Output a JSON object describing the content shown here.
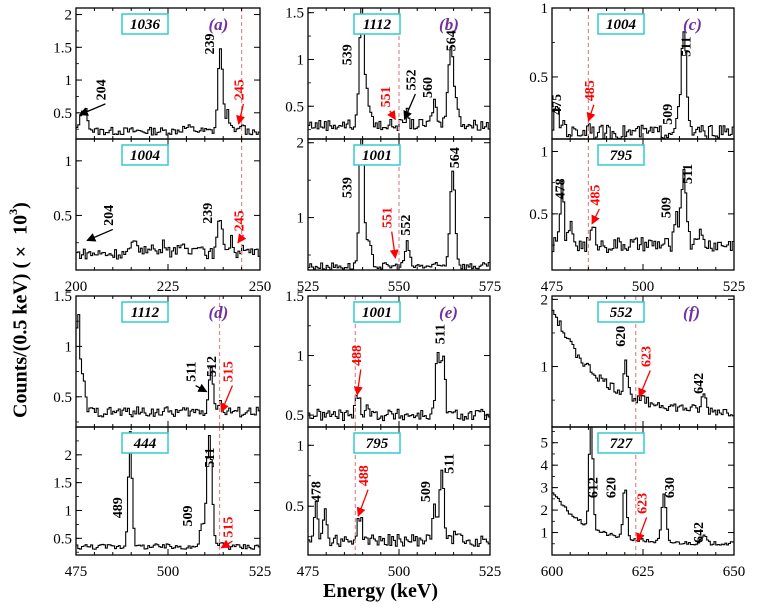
{
  "axis_label_y": "Counts/(0.5 keV) (× 10",
  "axis_label_y_sup": "3",
  "axis_label_y_end": ")",
  "axis_label_x": "Energy (keV)",
  "colors": {
    "line": "#000000",
    "gate_line": "#e08a8a",
    "new_label": "#ff0000",
    "box": "#33cccc",
    "panel_letter": "#7030a0"
  },
  "chart_data": [
    {
      "type": "line",
      "column": 0,
      "row": 0,
      "gate": "1036",
      "letter": "(a)",
      "xlim": [
        200,
        250
      ],
      "ylim": [
        0.1,
        2.1
      ],
      "yticks": [
        0.5,
        1,
        1.5,
        2
      ],
      "ytick_labels": [
        "0.5",
        "1",
        "1.5",
        "2"
      ],
      "dashed_x": 245,
      "annotations": [
        {
          "text": "204",
          "x": 208,
          "y": 0.85,
          "color": "black",
          "arrow_to": [
            201,
            0.47
          ]
        },
        {
          "text": "239",
          "x": 237.5,
          "y": 1.55,
          "color": "black"
        },
        {
          "text": "245",
          "x": 245.5,
          "y": 0.85,
          "color": "red",
          "arrow_to": [
            244.2,
            0.33
          ]
        }
      ],
      "peaks": [
        [
          202,
          0.35,
          0.9
        ],
        [
          239,
          1.3,
          0.6
        ],
        [
          241,
          0.3,
          0.5
        ],
        [
          245,
          0.12,
          0.4
        ],
        [
          230,
          0.05,
          1.5
        ]
      ],
      "baseline": 0.22,
      "noise": 0.06
    },
    {
      "type": "line",
      "column": 0,
      "row": 1,
      "gate": "1004",
      "letter": "",
      "xlim": [
        200,
        250
      ],
      "ylim": [
        0.0,
        1.2
      ],
      "yticks": [
        0.5,
        1
      ],
      "ytick_labels": [
        "0.5",
        "1"
      ],
      "dashed_x": 245,
      "annotations": [
        {
          "text": "204",
          "x": 210,
          "y": 0.5,
          "color": "black",
          "arrow_to": [
            203,
            0.27
          ]
        },
        {
          "text": "239",
          "x": 237,
          "y": 0.52,
          "color": "black"
        },
        {
          "text": "245",
          "x": 245.5,
          "y": 0.45,
          "color": "red",
          "arrow_to": [
            244,
            0.25
          ]
        }
      ],
      "peaks": [
        [
          216,
          0.1,
          1.0
        ],
        [
          220,
          0.08,
          0.8
        ],
        [
          224,
          0.1,
          0.8
        ],
        [
          228,
          0.09,
          0.8
        ],
        [
          233,
          0.1,
          1.0
        ],
        [
          239,
          0.33,
          0.7
        ],
        [
          242,
          0.12,
          0.6
        ],
        [
          245,
          0.1,
          0.4
        ]
      ],
      "baseline": 0.15,
      "noise": 0.05
    },
    {
      "type": "line",
      "column": 1,
      "row": 0,
      "gate": "1112",
      "letter": "(b)",
      "xlim": [
        525,
        575
      ],
      "ylim": [
        0.15,
        1.55
      ],
      "yticks": [
        0.5,
        1,
        1.5
      ],
      "ytick_labels": [
        "0.5",
        "1",
        "1.5"
      ],
      "dashed_x": 550,
      "annotations": [
        {
          "text": "539",
          "x": 537,
          "y": 1.05,
          "color": "black"
        },
        {
          "text": "551",
          "x": 547.5,
          "y": 0.6,
          "color": "red",
          "arrow_to": [
            549,
            0.36
          ]
        },
        {
          "text": "552",
          "x": 554.5,
          "y": 0.78,
          "color": "black",
          "arrow_to": [
            551.5,
            0.36
          ]
        },
        {
          "text": "560",
          "x": 559,
          "y": 0.7,
          "color": "black"
        },
        {
          "text": "564",
          "x": 565.5,
          "y": 1.2,
          "color": "black"
        }
      ],
      "peaks": [
        [
          539.5,
          1.35,
          0.6
        ],
        [
          541,
          0.3,
          0.8
        ],
        [
          552,
          0.12,
          0.5
        ],
        [
          559.5,
          0.25,
          0.6
        ],
        [
          564,
          0.85,
          0.8
        ],
        [
          566,
          0.15,
          0.6
        ]
      ],
      "baseline": 0.3,
      "noise": 0.06
    },
    {
      "type": "line",
      "column": 1,
      "row": 1,
      "gate": "1001",
      "letter": "",
      "xlim": [
        525,
        575
      ],
      "ylim": [
        0.3,
        2.05
      ],
      "yticks": [
        1,
        2
      ],
      "ytick_labels": [
        "1",
        "2"
      ],
      "dashed_x": 550,
      "annotations": [
        {
          "text": "539",
          "x": 537,
          "y": 1.4,
          "color": "black"
        },
        {
          "text": "551",
          "x": 548,
          "y": 1.0,
          "color": "red",
          "arrow_to": [
            549,
            0.46
          ]
        },
        {
          "text": "552",
          "x": 553,
          "y": 0.9,
          "color": "black"
        },
        {
          "text": "564",
          "x": 566.5,
          "y": 1.8,
          "color": "black"
        }
      ],
      "peaks": [
        [
          539.5,
          1.9,
          0.6
        ],
        [
          541.5,
          0.3,
          0.7
        ],
        [
          552,
          0.3,
          0.6
        ],
        [
          564.5,
          1.3,
          0.7
        ]
      ],
      "baseline": 0.35,
      "noise": 0.05
    },
    {
      "type": "line",
      "column": 2,
      "row": 0,
      "gate": "1004",
      "letter": "(c)",
      "xlim": [
        475,
        525
      ],
      "ylim": [
        0.05,
        1.0
      ],
      "yticks": [
        0.5,
        1
      ],
      "ytick_labels": [
        "0.5",
        "1"
      ],
      "dashed_x": 485,
      "annotations": [
        {
          "text": "475",
          "x": 477.5,
          "y": 0.3,
          "color": "black"
        },
        {
          "text": "485",
          "x": 486.5,
          "y": 0.4,
          "color": "red",
          "arrow_to": [
            485,
            0.18
          ]
        },
        {
          "text": "509",
          "x": 508,
          "y": 0.23,
          "color": "black"
        },
        {
          "text": "511",
          "x": 513,
          "y": 0.72,
          "color": "black"
        }
      ],
      "peaks": [
        [
          476,
          0.18,
          0.6
        ],
        [
          478,
          0.08,
          0.5
        ],
        [
          485,
          0.07,
          0.5
        ],
        [
          509,
          0.1,
          0.6
        ],
        [
          511,
          0.72,
          0.7
        ]
      ],
      "baseline": 0.1,
      "noise": 0.05
    },
    {
      "type": "line",
      "column": 2,
      "row": 1,
      "gate": "795",
      "letter": "",
      "xlim": [
        475,
        525
      ],
      "ylim": [
        0.05,
        1.1
      ],
      "yticks": [
        0.5,
        1
      ],
      "ytick_labels": [
        "0.5",
        "1"
      ],
      "dashed_x": 485,
      "annotations": [
        {
          "text": "478",
          "x": 478.5,
          "y": 0.7,
          "color": "black"
        },
        {
          "text": "485",
          "x": 488,
          "y": 0.65,
          "color": "red",
          "arrow_to": [
            486,
            0.42
          ]
        },
        {
          "text": "509",
          "x": 507.5,
          "y": 0.55,
          "color": "black"
        },
        {
          "text": "511",
          "x": 513.5,
          "y": 0.82,
          "color": "black"
        }
      ],
      "peaks": [
        [
          477.5,
          0.5,
          0.5
        ],
        [
          480,
          0.15,
          0.6
        ],
        [
          486,
          0.12,
          0.7
        ],
        [
          509,
          0.2,
          0.6
        ],
        [
          511,
          0.6,
          0.7
        ],
        [
          515,
          0.1,
          0.8
        ]
      ],
      "baseline": 0.25,
      "noise": 0.06
    },
    {
      "type": "line",
      "column": 0,
      "row": 2,
      "gate": "1112",
      "letter": "(d)",
      "xlim": [
        475,
        525
      ],
      "ylim": [
        0.2,
        1.5
      ],
      "yticks": [
        0.5,
        1,
        1.5
      ],
      "ytick_labels": [
        "0.5",
        "1",
        "1.5"
      ],
      "dashed_x": 514,
      "annotations": [
        {
          "text": "511",
          "x": 507.5,
          "y": 0.75,
          "color": "black",
          "arrow_to": [
            510.5,
            0.55
          ]
        },
        {
          "text": "512",
          "x": 513,
          "y": 0.8,
          "color": "black"
        },
        {
          "text": "515",
          "x": 517.5,
          "y": 0.75,
          "color": "red",
          "arrow_to": [
            514.5,
            0.35
          ]
        }
      ],
      "peaks": [
        [
          475.3,
          1.0,
          0.4
        ],
        [
          476.5,
          0.35,
          0.7
        ],
        [
          511.5,
          0.45,
          0.6
        ],
        [
          514,
          0.1,
          0.5
        ]
      ],
      "baseline": 0.35,
      "noise": 0.05
    },
    {
      "type": "line",
      "column": 0,
      "row": 3,
      "gate": "444",
      "letter": "",
      "xlim": [
        475,
        525
      ],
      "ylim": [
        0.2,
        2.5
      ],
      "yticks": [
        0.5,
        1,
        1.5,
        2
      ],
      "ytick_labels": [
        "0.5",
        "1",
        "1.5",
        "2"
      ],
      "dashed_x": 514,
      "annotations": [
        {
          "text": "489",
          "x": 487.5,
          "y": 1.05,
          "color": "black"
        },
        {
          "text": "509",
          "x": 506.5,
          "y": 0.9,
          "color": "black"
        },
        {
          "text": "511",
          "x": 512.5,
          "y": 1.95,
          "color": "black"
        },
        {
          "text": "515",
          "x": 517.5,
          "y": 0.7,
          "color": "red",
          "arrow_to": [
            514.5,
            0.33
          ]
        }
      ],
      "peaks": [
        [
          489.5,
          2.1,
          0.5
        ],
        [
          509,
          0.4,
          0.5
        ],
        [
          511,
          2.0,
          0.7
        ],
        [
          514.5,
          0.1,
          0.4
        ]
      ],
      "baseline": 0.35,
      "noise": 0.05
    },
    {
      "type": "line",
      "column": 1,
      "row": 2,
      "gate": "1001",
      "letter": "(e)",
      "xlim": [
        475,
        525
      ],
      "ylim": [
        0.4,
        1.5
      ],
      "yticks": [
        0.5,
        1,
        1.5
      ],
      "ytick_labels": [
        "0.5",
        "1",
        "1.5"
      ],
      "dashed_x": 488,
      "annotations": [
        {
          "text": "488",
          "x": 489.5,
          "y": 1.0,
          "color": "red",
          "arrow_to": [
            488.5,
            0.67
          ]
        },
        {
          "text": "511",
          "x": 512.5,
          "y": 1.18,
          "color": "black"
        }
      ],
      "peaks": [
        [
          488.5,
          0.18,
          0.6
        ],
        [
          491,
          0.08,
          0.6
        ],
        [
          510.5,
          0.55,
          0.6
        ],
        [
          512,
          0.45,
          0.5
        ]
      ],
      "baseline": 0.5,
      "noise": 0.05
    },
    {
      "type": "line",
      "column": 1,
      "row": 3,
      "gate": "795",
      "letter": "",
      "xlim": [
        475,
        525
      ],
      "ylim": [
        0.1,
        1.15
      ],
      "yticks": [
        0.5,
        1
      ],
      "ytick_labels": [
        "0.5",
        "1"
      ],
      "dashed_x": 488,
      "annotations": [
        {
          "text": "478",
          "x": 478.5,
          "y": 0.62,
          "color": "black"
        },
        {
          "text": "488",
          "x": 491.5,
          "y": 0.75,
          "color": "red",
          "arrow_to": [
            488.8,
            0.42
          ]
        },
        {
          "text": "509",
          "x": 508.5,
          "y": 0.62,
          "color": "black"
        },
        {
          "text": "511",
          "x": 515,
          "y": 0.85,
          "color": "black"
        }
      ],
      "peaks": [
        [
          477,
          0.35,
          0.5
        ],
        [
          479.5,
          0.25,
          0.5
        ],
        [
          489,
          0.2,
          0.6
        ],
        [
          509.5,
          0.3,
          0.5
        ],
        [
          511.5,
          0.6,
          0.6
        ],
        [
          516,
          0.1,
          0.6
        ]
      ],
      "baseline": 0.22,
      "noise": 0.05
    },
    {
      "type": "line",
      "column": 2,
      "row": 2,
      "gate": "552",
      "letter": "(f)",
      "xlim": [
        600,
        650
      ],
      "ylim": [
        0.1,
        2.05
      ],
      "yticks": [
        1,
        2
      ],
      "ytick_labels": [
        "1",
        "2"
      ],
      "dashed_x": 623,
      "annotations": [
        {
          "text": "620",
          "x": 620,
          "y": 1.45,
          "color": "black"
        },
        {
          "text": "623",
          "x": 627,
          "y": 1.15,
          "color": "red",
          "arrow_to": [
            624,
            0.55
          ]
        },
        {
          "text": "642",
          "x": 641.5,
          "y": 0.75,
          "color": "black"
        }
      ],
      "peaks": [
        [
          620,
          0.5,
          0.5
        ],
        [
          641.5,
          0.25,
          0.5
        ]
      ],
      "baseline": 0.3,
      "noise": 0.07,
      "decay": [
        1.55,
        12
      ]
    },
    {
      "type": "line",
      "column": 2,
      "row": 3,
      "gate": "727",
      "letter": "",
      "xlim": [
        600,
        650
      ],
      "ylim": [
        0.0,
        5.7
      ],
      "yticks": [
        1,
        2,
        3,
        4,
        5
      ],
      "ytick_labels": [
        "1",
        "2",
        "3",
        "4",
        "5"
      ],
      "dashed_x": 623,
      "annotations": [
        {
          "text": "612",
          "x": 612.5,
          "y": 3.0,
          "color": "black"
        },
        {
          "text": "620",
          "x": 617.5,
          "y": 3.0,
          "color": "black"
        },
        {
          "text": "623",
          "x": 626,
          "y": 2.3,
          "color": "red",
          "arrow_to": [
            623.5,
            0.6
          ]
        },
        {
          "text": "630",
          "x": 633.5,
          "y": 3.0,
          "color": "black"
        },
        {
          "text": "642",
          "x": 641.5,
          "y": 1.0,
          "color": "black"
        }
      ],
      "peaks": [
        [
          610.5,
          5.2,
          0.5
        ],
        [
          619.8,
          2.3,
          0.5
        ],
        [
          630.5,
          2.1,
          0.6
        ],
        [
          641.5,
          0.35,
          0.6
        ]
      ],
      "baseline": 0.5,
      "noise": 0.08,
      "decay": [
        2.3,
        9
      ]
    }
  ],
  "x_axis_ticks": [
    {
      "column": 0,
      "group": "top",
      "values": [
        200,
        225,
        250
      ],
      "labels": [
        "200",
        "225",
        "250"
      ]
    },
    {
      "column": 1,
      "group": "top",
      "values": [
        525,
        550,
        575
      ],
      "labels": [
        "525",
        "550",
        "575"
      ]
    },
    {
      "column": 2,
      "group": "top",
      "values": [
        475,
        500,
        525
      ],
      "labels": [
        "475",
        "500",
        "525"
      ]
    },
    {
      "column": 0,
      "group": "bottom",
      "values": [
        475,
        500,
        525
      ],
      "labels": [
        "475",
        "500",
        "525"
      ]
    },
    {
      "column": 1,
      "group": "bottom",
      "values": [
        475,
        500,
        525
      ],
      "labels": [
        "475",
        "500",
        "525"
      ]
    },
    {
      "column": 2,
      "group": "bottom",
      "values": [
        600,
        625,
        650
      ],
      "labels": [
        "600",
        "625",
        "650"
      ]
    }
  ]
}
